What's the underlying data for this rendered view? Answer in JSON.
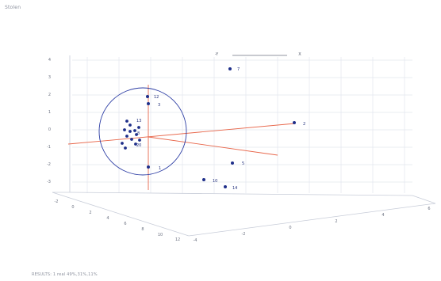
{
  "window": {
    "title": "Stolen"
  },
  "status": {
    "text": "RESULTS: 1 real 49%,31%,11%"
  },
  "legend": {
    "left_label": "-Y",
    "right_label": "X"
  },
  "axes": {
    "z_ticks": [
      "4",
      "3",
      "2",
      "1",
      "0",
      "-1",
      "-2",
      "-3"
    ],
    "x_ticks": [
      "-2",
      "0",
      "2",
      "4",
      "6",
      "8",
      "10",
      "12"
    ],
    "y_ticks": [
      "-4",
      "-2",
      "0",
      "2",
      "4",
      "6"
    ]
  },
  "colors": {
    "background": "#ffffff",
    "grid": "#e3e6ee",
    "box_axis": "#c7ccd8",
    "tick_text": "#6b7180",
    "point": "#1f2f8a",
    "label": "#22307c",
    "ring": "#2a3ba3",
    "cross": "#e8664a"
  },
  "cluster_labels": [
    "13",
    "8",
    "20"
  ],
  "points": [
    {
      "label": "7"
    },
    {
      "label": "12"
    },
    {
      "label": "3"
    },
    {
      "label": "2"
    },
    {
      "label": "5"
    },
    {
      "label": "1"
    },
    {
      "label": "10"
    },
    {
      "label": "14"
    }
  ]
}
